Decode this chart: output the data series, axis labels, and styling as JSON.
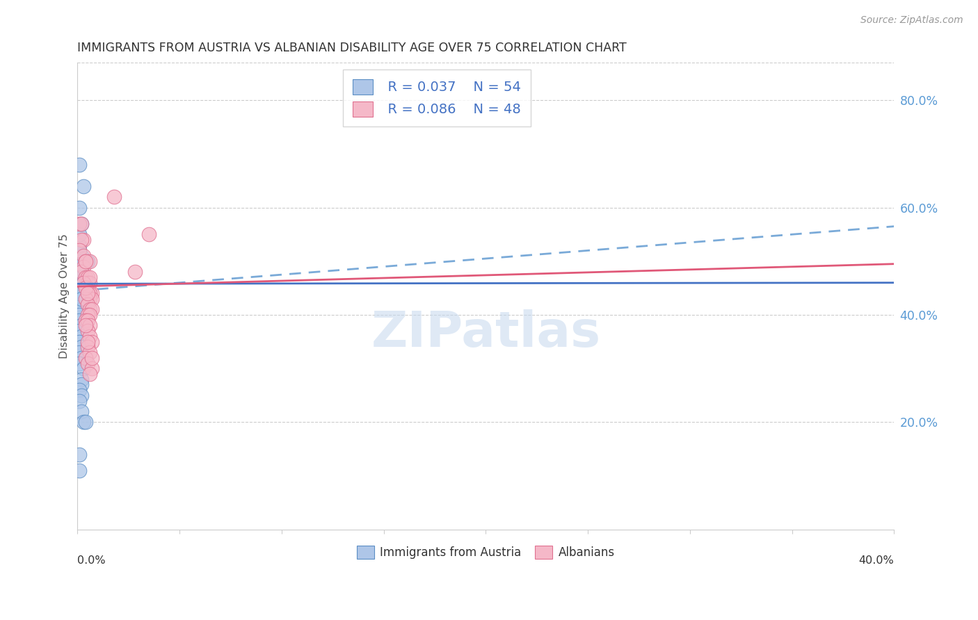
{
  "title": "IMMIGRANTS FROM AUSTRIA VS ALBANIAN DISABILITY AGE OVER 75 CORRELATION CHART",
  "source": "Source: ZipAtlas.com",
  "ylabel": "Disability Age Over 75",
  "legend_austria": {
    "R": "0.037",
    "N": "54"
  },
  "legend_albanian": {
    "R": "0.086",
    "N": "48"
  },
  "legend_labels": [
    "Immigrants from Austria",
    "Albanians"
  ],
  "blue_face_color": "#aec6e8",
  "blue_edge_color": "#5b8ec4",
  "pink_face_color": "#f5b8c8",
  "pink_edge_color": "#e07090",
  "blue_line_color": "#4472c4",
  "pink_line_color": "#e05878",
  "blue_dash_color": "#7aaad8",
  "right_tick_color": "#5b9bd5",
  "xlim": [
    0.0,
    0.4
  ],
  "ylim": [
    0.0,
    0.87
  ],
  "xticks": [
    0.0,
    0.05,
    0.1,
    0.15,
    0.2,
    0.25,
    0.3,
    0.35,
    0.4
  ],
  "yticks_right": [
    0.2,
    0.4,
    0.6,
    0.8
  ],
  "blue_x": [
    0.001,
    0.002,
    0.001,
    0.002,
    0.003,
    0.001,
    0.002,
    0.002,
    0.001,
    0.002,
    0.001,
    0.003,
    0.001,
    0.002,
    0.002,
    0.001,
    0.001,
    0.002,
    0.001,
    0.002,
    0.001,
    0.002,
    0.003,
    0.002,
    0.001,
    0.002,
    0.001,
    0.001,
    0.002,
    0.001,
    0.002,
    0.001,
    0.002,
    0.001,
    0.002,
    0.001,
    0.003,
    0.002,
    0.002,
    0.001,
    0.002,
    0.001,
    0.002,
    0.003,
    0.001,
    0.002,
    0.001,
    0.002,
    0.005,
    0.001,
    0.002,
    0.003,
    0.001,
    0.004
  ],
  "blue_y": [
    0.47,
    0.49,
    0.52,
    0.51,
    0.5,
    0.53,
    0.5,
    0.48,
    0.55,
    0.57,
    0.6,
    0.64,
    0.68,
    0.46,
    0.46,
    0.48,
    0.47,
    0.46,
    0.44,
    0.45,
    0.43,
    0.44,
    0.45,
    0.43,
    0.42,
    0.41,
    0.4,
    0.39,
    0.38,
    0.37,
    0.36,
    0.35,
    0.34,
    0.33,
    0.32,
    0.31,
    0.3,
    0.28,
    0.27,
    0.26,
    0.25,
    0.24,
    0.22,
    0.2,
    0.14,
    0.46,
    0.46,
    0.47,
    0.5,
    0.44,
    0.43,
    0.46,
    0.11,
    0.2
  ],
  "pink_x": [
    0.001,
    0.002,
    0.003,
    0.002,
    0.001,
    0.003,
    0.004,
    0.003,
    0.002,
    0.004,
    0.005,
    0.005,
    0.006,
    0.005,
    0.007,
    0.006,
    0.006,
    0.007,
    0.004,
    0.005,
    0.006,
    0.007,
    0.005,
    0.006,
    0.004,
    0.005,
    0.006,
    0.005,
    0.006,
    0.007,
    0.005,
    0.006,
    0.004,
    0.005,
    0.007,
    0.006,
    0.004,
    0.005,
    0.007,
    0.006,
    0.018,
    0.028,
    0.035,
    0.003,
    0.004,
    0.005,
    0.006,
    0.004
  ],
  "pink_y": [
    0.57,
    0.57,
    0.54,
    0.54,
    0.52,
    0.51,
    0.5,
    0.49,
    0.48,
    0.47,
    0.47,
    0.46,
    0.46,
    0.45,
    0.44,
    0.44,
    0.43,
    0.43,
    0.43,
    0.42,
    0.41,
    0.41,
    0.4,
    0.4,
    0.39,
    0.39,
    0.38,
    0.37,
    0.36,
    0.35,
    0.34,
    0.33,
    0.32,
    0.31,
    0.3,
    0.29,
    0.38,
    0.35,
    0.32,
    0.5,
    0.62,
    0.48,
    0.55,
    0.46,
    0.45,
    0.44,
    0.47,
    0.5
  ],
  "blue_trend": [
    0.458,
    0.46
  ],
  "pink_trend": [
    0.453,
    0.495
  ],
  "blue_dash_trend": [
    0.445,
    0.565
  ],
  "watermark": "ZIPatlas"
}
